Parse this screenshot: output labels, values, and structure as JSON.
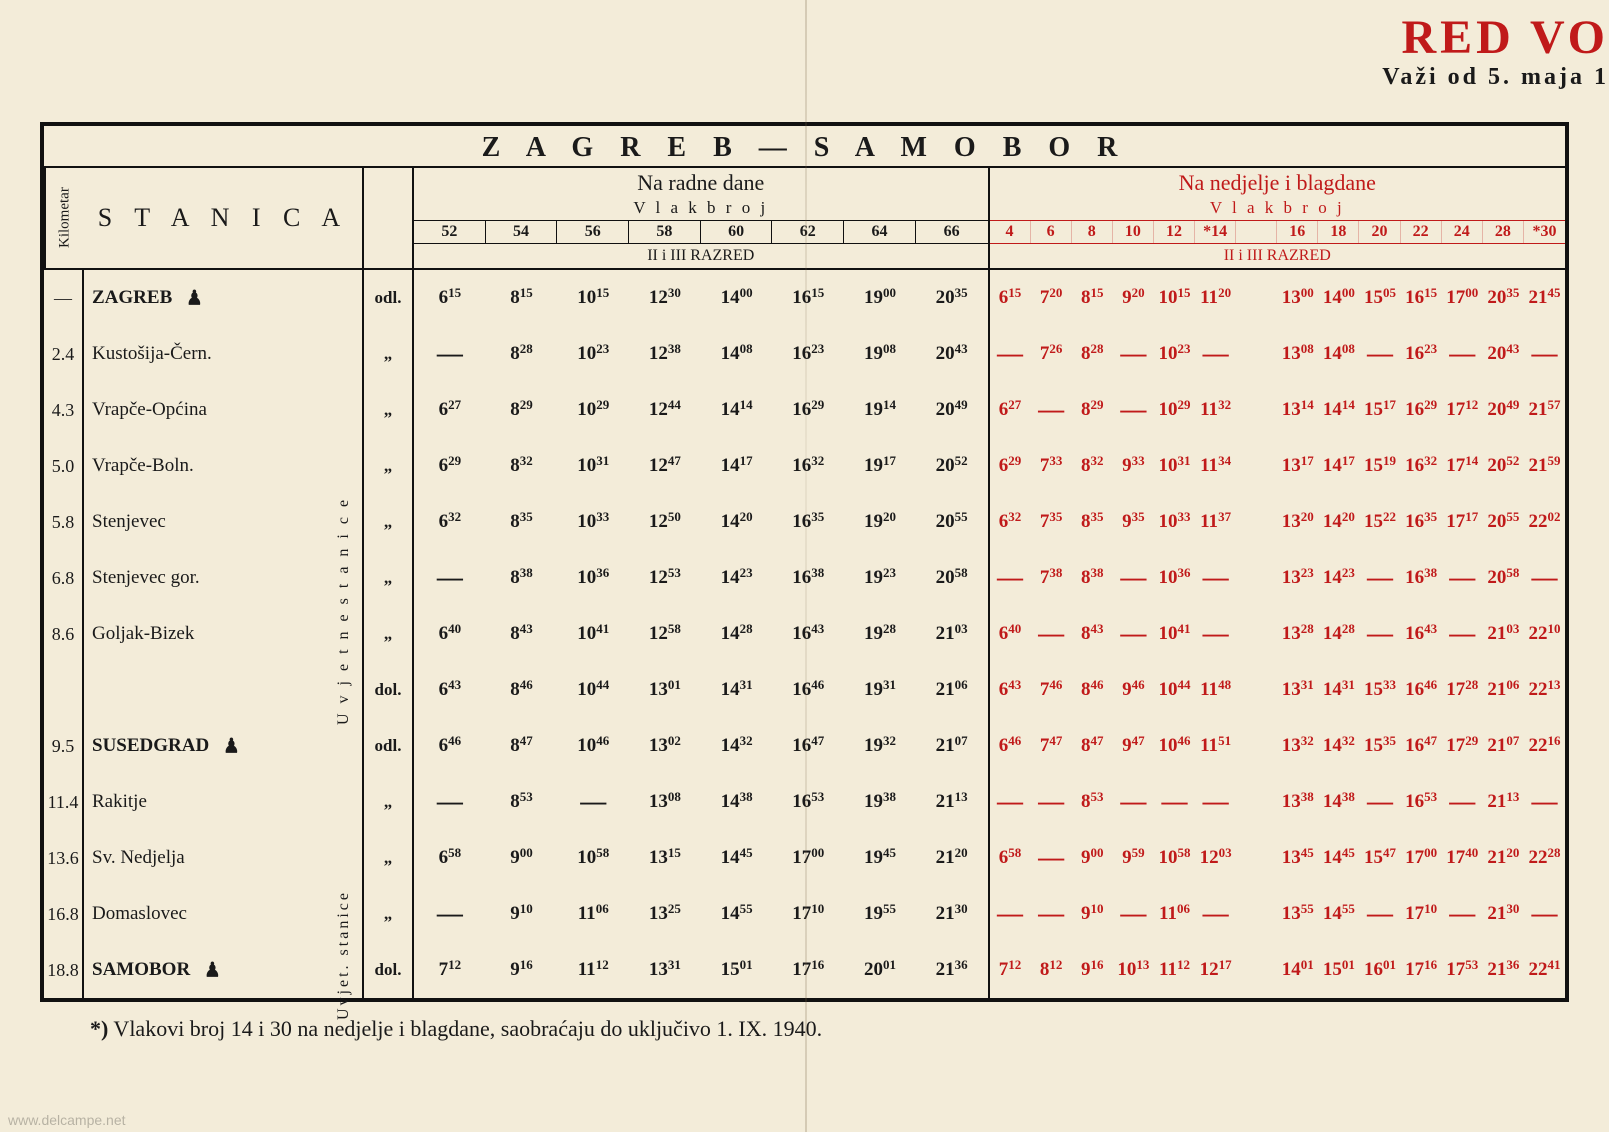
{
  "colors": {
    "paper": "#f3ecd9",
    "ink": "#1a1a1a",
    "red": "#c01a1a"
  },
  "brand": {
    "title": "RED VO",
    "sub": "Važi od 5. maja 1"
  },
  "route": "Z A G R E B — S A M O B O R",
  "header": {
    "km": "Kilometar",
    "stanica": "S T A N I C A",
    "left": {
      "dane": "Na radne dane",
      "vlak": "V l a k   b r o j",
      "nums": [
        "52",
        "54",
        "56",
        "58",
        "60",
        "62",
        "64",
        "66"
      ],
      "razred": "II i III RAZRED"
    },
    "right": {
      "dane": "Na nedjelje i blagdane",
      "vlak": "V l a k   b r o j",
      "nums": [
        "4",
        "6",
        "8",
        "10",
        "12",
        "*14",
        "",
        "16",
        "18",
        "20",
        "22",
        "24",
        "28",
        "*30"
      ],
      "razred": "II i III RAZRED"
    }
  },
  "vlabel1": "U v j e t n e   s t a n i c e",
  "vlabel2": "Uvjet. stanice",
  "rows": [
    {
      "km": "—",
      "name": "ZAGREB",
      "bold": true,
      "cup": true,
      "odl": "odl.",
      "L": [
        "6|15",
        "8|15",
        "10|15",
        "12|30",
        "14|00",
        "16|15",
        "19|00",
        "20|35"
      ],
      "R": [
        "6|15",
        "7|20",
        "8|15",
        "9|20",
        "10|15",
        "11|20",
        "",
        "13|00",
        "14|00",
        "15|05",
        "16|15",
        "17|00",
        "20|35",
        "21|45"
      ]
    },
    {
      "km": "2.4",
      "name": "Kustošija-Čern.",
      "bold": false,
      "cup": false,
      "odl": "„",
      "L": [
        "—",
        "8|28",
        "10|23",
        "12|38",
        "14|08",
        "16|23",
        "19|08",
        "20|43"
      ],
      "R": [
        "—",
        "7|26",
        "8|28",
        "—",
        "10|23",
        "—",
        "",
        "13|08",
        "14|08",
        "—",
        "16|23",
        "—",
        "20|43",
        "—"
      ]
    },
    {
      "km": "4.3",
      "name": "Vrapče-Općina",
      "bold": false,
      "cup": false,
      "odl": "„",
      "L": [
        "6|27",
        "8|29",
        "10|29",
        "12|44",
        "14|14",
        "16|29",
        "19|14",
        "20|49"
      ],
      "R": [
        "6|27",
        "—",
        "8|29",
        "—",
        "10|29",
        "11|32",
        "",
        "13|14",
        "14|14",
        "15|17",
        "16|29",
        "17|12",
        "20|49",
        "21|57"
      ]
    },
    {
      "km": "5.0",
      "name": "Vrapče-Boln.",
      "bold": false,
      "cup": false,
      "odl": "„",
      "L": [
        "6|29",
        "8|32",
        "10|31",
        "12|47",
        "14|17",
        "16|32",
        "19|17",
        "20|52"
      ],
      "R": [
        "6|29",
        "7|33",
        "8|32",
        "9|33",
        "10|31",
        "11|34",
        "",
        "13|17",
        "14|17",
        "15|19",
        "16|32",
        "17|14",
        "20|52",
        "21|59"
      ]
    },
    {
      "km": "5.8",
      "name": "Stenjevec",
      "bold": false,
      "cup": false,
      "odl": "„",
      "L": [
        "6|32",
        "8|35",
        "10|33",
        "12|50",
        "14|20",
        "16|35",
        "19|20",
        "20|55"
      ],
      "R": [
        "6|32",
        "7|35",
        "8|35",
        "9|35",
        "10|33",
        "11|37",
        "",
        "13|20",
        "14|20",
        "15|22",
        "16|35",
        "17|17",
        "20|55",
        "22|02"
      ]
    },
    {
      "km": "6.8",
      "name": "Stenjevec gor.",
      "bold": false,
      "cup": false,
      "odl": "„",
      "L": [
        "—",
        "8|38",
        "10|36",
        "12|53",
        "14|23",
        "16|38",
        "19|23",
        "20|58"
      ],
      "R": [
        "—",
        "7|38",
        "8|38",
        "—",
        "10|36",
        "—",
        "",
        "13|23",
        "14|23",
        "—",
        "16|38",
        "—",
        "20|58",
        "—"
      ]
    },
    {
      "km": "8.6",
      "name": "Goljak-Bizek",
      "bold": false,
      "cup": false,
      "odl": "„",
      "L": [
        "6|40",
        "8|43",
        "10|41",
        "12|58",
        "14|28",
        "16|43",
        "19|28",
        "21|03"
      ],
      "R": [
        "6|40",
        "—",
        "8|43",
        "—",
        "10|41",
        "—",
        "",
        "13|28",
        "14|28",
        "—",
        "16|43",
        "—",
        "21|03",
        "22|10"
      ]
    },
    {
      "km": "",
      "name": "",
      "bold": true,
      "cup": false,
      "odl": "dol.",
      "L": [
        "6|43",
        "8|46",
        "10|44",
        "13|01",
        "14|31",
        "16|46",
        "19|31",
        "21|06"
      ],
      "R": [
        "6|43",
        "7|46",
        "8|46",
        "9|46",
        "10|44",
        "11|48",
        "",
        "13|31",
        "14|31",
        "15|33",
        "16|46",
        "17|28",
        "21|06",
        "22|13"
      ]
    },
    {
      "km": "9.5",
      "name": "SUSEDGRAD",
      "bold": true,
      "cup": true,
      "odl": "odl.",
      "L": [
        "6|46",
        "8|47",
        "10|46",
        "13|02",
        "14|32",
        "16|47",
        "19|32",
        "21|07"
      ],
      "R": [
        "6|46",
        "7|47",
        "8|47",
        "9|47",
        "10|46",
        "11|51",
        "",
        "13|32",
        "14|32",
        "15|35",
        "16|47",
        "17|29",
        "21|07",
        "22|16"
      ]
    },
    {
      "km": "11.4",
      "name": "Rakitje",
      "bold": false,
      "cup": false,
      "odl": "„",
      "L": [
        "—",
        "8|53",
        "—",
        "13|08",
        "14|38",
        "16|53",
        "19|38",
        "21|13"
      ],
      "R": [
        "—",
        "—",
        "8|53",
        "—",
        "—",
        "—",
        "",
        "13|38",
        "14|38",
        "—",
        "16|53",
        "—",
        "21|13",
        "—"
      ]
    },
    {
      "km": "13.6",
      "name": "Sv. Nedjelja",
      "bold": false,
      "cup": false,
      "odl": "„",
      "L": [
        "6|58",
        "9|00",
        "10|58",
        "13|15",
        "14|45",
        "17|00",
        "19|45",
        "21|20"
      ],
      "R": [
        "6|58",
        "—",
        "9|00",
        "9|59",
        "10|58",
        "12|03",
        "",
        "13|45",
        "14|45",
        "15|47",
        "17|00",
        "17|40",
        "21|20",
        "22|28"
      ]
    },
    {
      "km": "16.8",
      "name": "Domaslovec",
      "bold": false,
      "cup": false,
      "odl": "„",
      "L": [
        "—",
        "9|10",
        "11|06",
        "13|25",
        "14|55",
        "17|10",
        "19|55",
        "21|30"
      ],
      "R": [
        "—",
        "—",
        "9|10",
        "—",
        "11|06",
        "—",
        "",
        "13|55",
        "14|55",
        "—",
        "17|10",
        "—",
        "21|30",
        "—"
      ]
    },
    {
      "km": "18.8",
      "name": "SAMOBOR",
      "bold": true,
      "cup": true,
      "odl": "dol.",
      "L": [
        "7|12",
        "9|16",
        "11|12",
        "13|31",
        "15|01",
        "17|16",
        "20|01",
        "21|36"
      ],
      "R": [
        "7|12",
        "8|12",
        "9|16",
        "10|13",
        "11|12",
        "12|17",
        "",
        "14|01",
        "15|01",
        "16|01",
        "17|16",
        "17|53",
        "21|36",
        "22|41"
      ]
    }
  ],
  "footnote": {
    "ast": "*)",
    "text": " Vlakovi broj 14 i 30 na nedjelje i blagdane, saobraćaju do uključivo 1. IX. 1940."
  },
  "watermark": "www.delcampe.net"
}
